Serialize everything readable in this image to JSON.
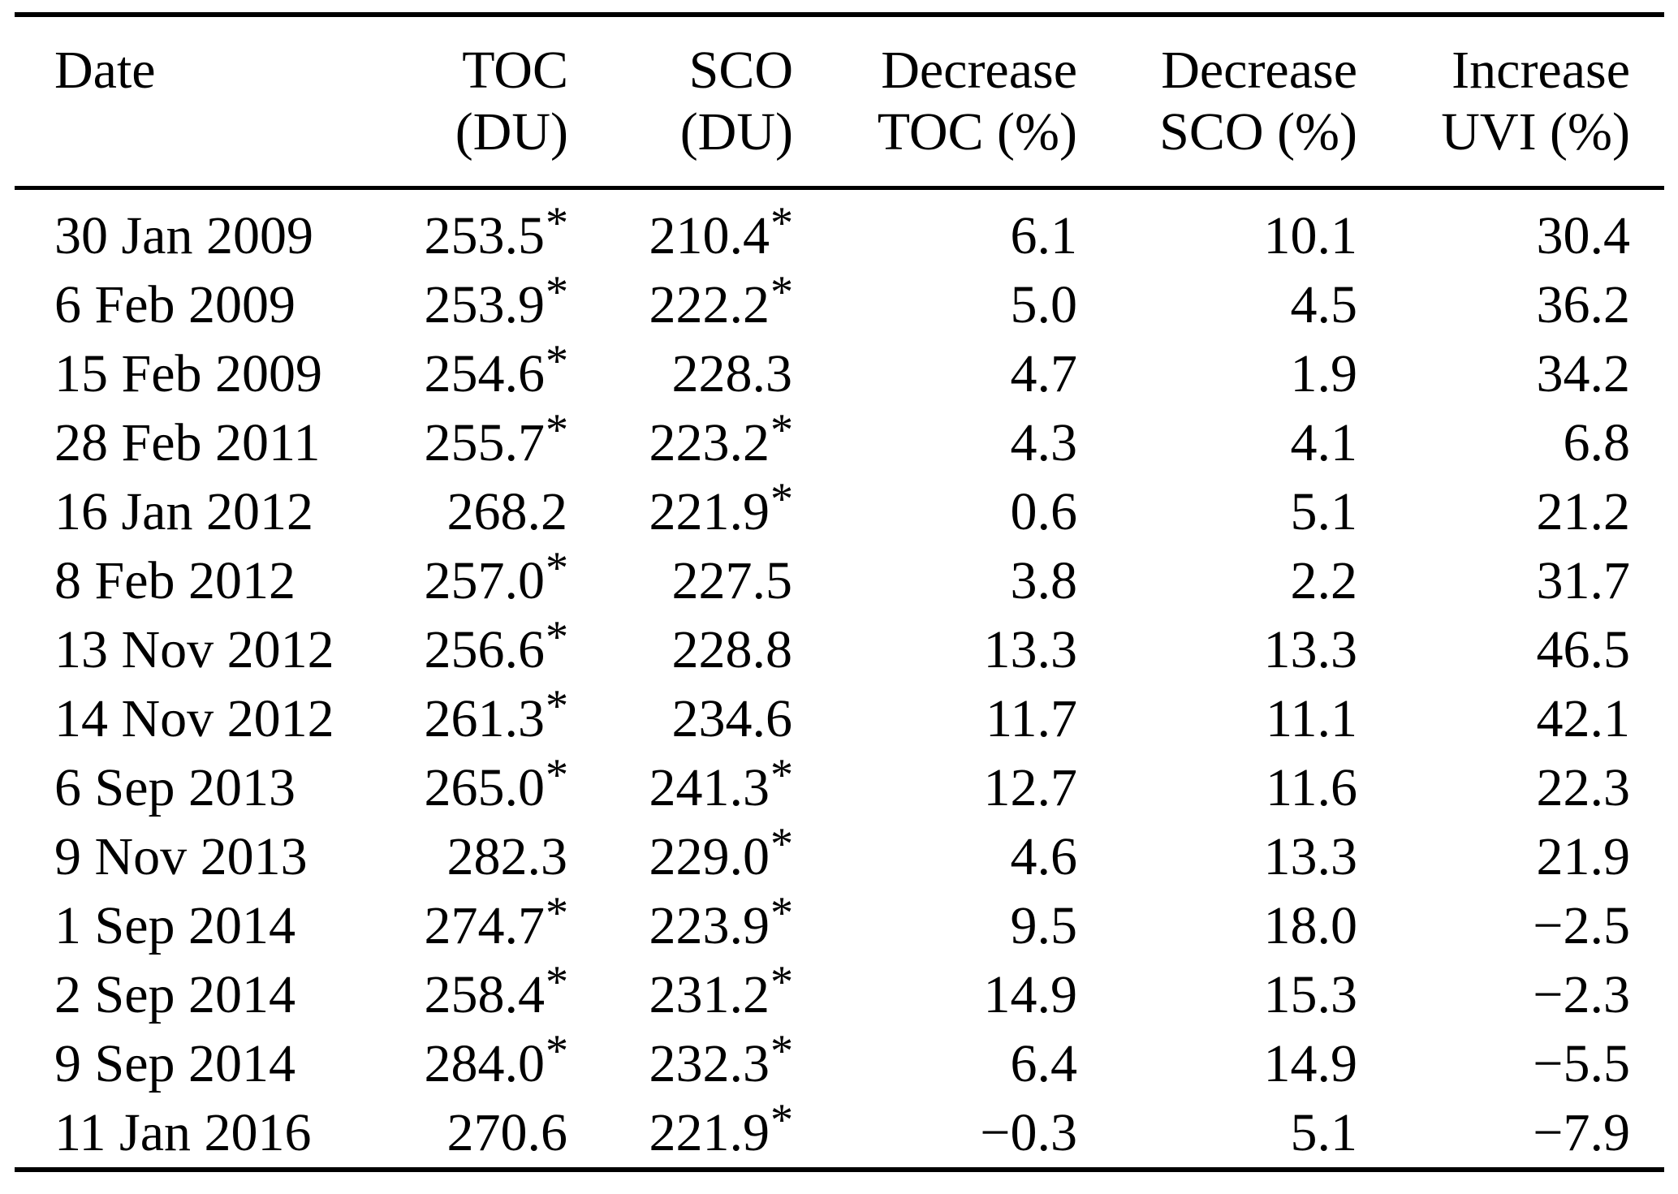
{
  "table": {
    "header": {
      "date": "Date",
      "toc_line1": "TOC",
      "toc_line2": "(DU)",
      "sco_line1": "SCO",
      "sco_line2": "(DU)",
      "dec_toc_line1": "Decrease",
      "dec_toc_line2": "TOC (%)",
      "dec_sco_line1": "Decrease",
      "dec_sco_line2": "SCO (%)",
      "inc_uvi_line1": "Increase",
      "inc_uvi_line2": "UVI (%)"
    },
    "rows": [
      {
        "date": "30 Jan 2009",
        "toc": "253.5",
        "toc_star": "*",
        "sco": "210.4",
        "sco_star": "*",
        "dec_toc": "6.1",
        "dec_sco": "10.1",
        "inc_uvi": "30.4"
      },
      {
        "date": "6 Feb 2009",
        "toc": "253.9",
        "toc_star": "*",
        "sco": "222.2",
        "sco_star": "*",
        "dec_toc": "5.0",
        "dec_sco": "4.5",
        "inc_uvi": "36.2"
      },
      {
        "date": "15 Feb 2009",
        "toc": "254.6",
        "toc_star": "*",
        "sco": "228.3",
        "sco_star": "",
        "dec_toc": "4.7",
        "dec_sco": "1.9",
        "inc_uvi": "34.2"
      },
      {
        "date": "28 Feb 2011",
        "toc": "255.7",
        "toc_star": "*",
        "sco": "223.2",
        "sco_star": "*",
        "dec_toc": "4.3",
        "dec_sco": "4.1",
        "inc_uvi": "6.8"
      },
      {
        "date": "16 Jan 2012",
        "toc": "268.2",
        "toc_star": "",
        "sco": "221.9",
        "sco_star": "*",
        "dec_toc": "0.6",
        "dec_sco": "5.1",
        "inc_uvi": "21.2"
      },
      {
        "date": "8 Feb 2012",
        "toc": "257.0",
        "toc_star": "*",
        "sco": "227.5",
        "sco_star": "",
        "dec_toc": "3.8",
        "dec_sco": "2.2",
        "inc_uvi": "31.7"
      },
      {
        "date": "13 Nov 2012",
        "toc": "256.6",
        "toc_star": "*",
        "sco": "228.8",
        "sco_star": "",
        "dec_toc": "13.3",
        "dec_sco": "13.3",
        "inc_uvi": "46.5"
      },
      {
        "date": "14 Nov 2012",
        "toc": "261.3",
        "toc_star": "*",
        "sco": "234.6",
        "sco_star": "",
        "dec_toc": "11.7",
        "dec_sco": "11.1",
        "inc_uvi": "42.1"
      },
      {
        "date": "6 Sep 2013",
        "toc": "265.0",
        "toc_star": "*",
        "sco": "241.3",
        "sco_star": "*",
        "dec_toc": "12.7",
        "dec_sco": "11.6",
        "inc_uvi": "22.3"
      },
      {
        "date": "9 Nov 2013",
        "toc": "282.3",
        "toc_star": "",
        "sco": "229.0",
        "sco_star": "*",
        "dec_toc": "4.6",
        "dec_sco": "13.3",
        "inc_uvi": "21.9"
      },
      {
        "date": "1 Sep 2014",
        "toc": "274.7",
        "toc_star": "*",
        "sco": "223.9",
        "sco_star": "*",
        "dec_toc": "9.5",
        "dec_sco": "18.0",
        "inc_uvi": "−2.5"
      },
      {
        "date": "2 Sep 2014",
        "toc": "258.4",
        "toc_star": "*",
        "sco": "231.2",
        "sco_star": "*",
        "dec_toc": "14.9",
        "dec_sco": "15.3",
        "inc_uvi": "−2.3"
      },
      {
        "date": "9 Sep 2014",
        "toc": "284.0",
        "toc_star": "*",
        "sco": "232.3",
        "sco_star": "*",
        "dec_toc": "6.4",
        "dec_sco": "14.9",
        "inc_uvi": "−5.5"
      },
      {
        "date": "11 Jan 2016",
        "toc": "270.6",
        "toc_star": "",
        "sco": "221.9",
        "sco_star": "*",
        "dec_toc": "−0.3",
        "dec_sco": "5.1",
        "inc_uvi": "−7.9"
      }
    ]
  },
  "colors": {
    "text": "#000000",
    "background": "#ffffff",
    "rule": "#000000"
  }
}
